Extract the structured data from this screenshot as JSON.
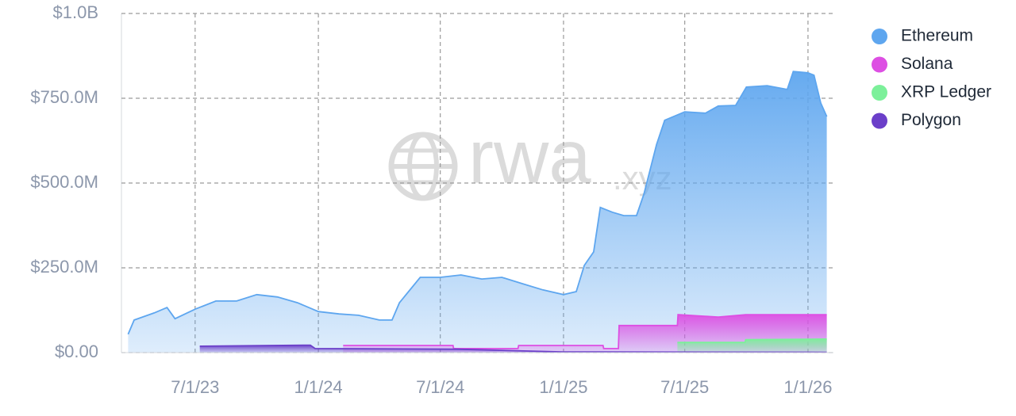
{
  "chart_data": {
    "type": "area",
    "watermark": {
      "main": "rwa",
      "suffix": ".xyz"
    },
    "xlim": [
      "2023-03-13",
      "2026-02-08"
    ],
    "xticks": [
      {
        "value": "2023-07-01",
        "label": "7/1/23"
      },
      {
        "value": "2024-01-01",
        "label": "1/1/24"
      },
      {
        "value": "2024-07-01",
        "label": "7/1/24"
      },
      {
        "value": "2025-01-01",
        "label": "1/1/25"
      },
      {
        "value": "2025-07-01",
        "label": "7/1/25"
      },
      {
        "value": "2026-01-01",
        "label": "1/1/26"
      }
    ],
    "ylim": [
      0,
      1000000000
    ],
    "yticks": [
      {
        "value": 0,
        "label": "$0.00"
      },
      {
        "value": 250000000,
        "label": "$250.0M"
      },
      {
        "value": 500000000,
        "label": "$500.0M"
      },
      {
        "value": 750000000,
        "label": "$750.0M"
      },
      {
        "value": 1000000000,
        "label": "$1.0B"
      }
    ],
    "grid": true,
    "legend": "right",
    "series": [
      {
        "name": "Ethereum",
        "color": "#5ea6ef",
        "x": [
          "2023-03-23",
          "2023-04-01",
          "2023-05-01",
          "2023-05-20",
          "2023-06-01",
          "2023-07-01",
          "2023-08-01",
          "2023-09-01",
          "2023-10-01",
          "2023-11-01",
          "2023-12-01",
          "2024-01-01",
          "2024-02-01",
          "2024-03-01",
          "2024-04-01",
          "2024-04-20",
          "2024-05-01",
          "2024-06-01",
          "2024-07-01",
          "2024-08-01",
          "2024-09-01",
          "2024-10-01",
          "2024-11-01",
          "2024-12-01",
          "2025-01-01",
          "2025-01-20",
          "2025-02-01",
          "2025-02-15",
          "2025-02-25",
          "2025-03-15",
          "2025-04-01",
          "2025-04-20",
          "2025-05-01",
          "2025-05-20",
          "2025-06-01",
          "2025-07-01",
          "2025-08-01",
          "2025-08-20",
          "2025-09-15",
          "2025-10-01",
          "2025-11-01",
          "2025-12-01",
          "2025-12-10",
          "2026-01-01",
          "2026-01-10",
          "2026-01-20",
          "2026-01-29"
        ],
        "values": [
          54000000,
          96000000,
          117000000,
          133000000,
          100000000,
          128000000,
          152000000,
          152000000,
          171000000,
          164000000,
          147000000,
          121000000,
          114000000,
          110000000,
          96000000,
          96000000,
          147000000,
          222000000,
          222000000,
          229000000,
          217000000,
          222000000,
          203000000,
          185000000,
          171000000,
          180000000,
          257000000,
          297000000,
          428000000,
          414000000,
          404000000,
          404000000,
          467000000,
          614000000,
          685000000,
          710000000,
          706000000,
          727000000,
          729000000,
          783000000,
          787000000,
          776000000,
          829000000,
          825000000,
          818000000,
          736000000,
          696000000
        ]
      },
      {
        "name": "Solana",
        "color": "#dd4fe3",
        "x": [
          "2024-02-07",
          "2024-07-20",
          "2024-07-21",
          "2024-10-25",
          "2024-10-26",
          "2025-03-01",
          "2025-03-02",
          "2025-03-24",
          "2025-03-25",
          "2025-06-20",
          "2025-06-21",
          "2025-08-20",
          "2025-09-30",
          "2026-01-29"
        ],
        "values": [
          21000000,
          21000000,
          12000000,
          12000000,
          21000000,
          21000000,
          12000000,
          12000000,
          80000000,
          80000000,
          112000000,
          105000000,
          112000000,
          112000000
        ]
      },
      {
        "name": "XRP Ledger",
        "color": "#7cf09a",
        "x": [
          "2025-06-20",
          "2025-09-29",
          "2025-09-30",
          "2026-01-29"
        ],
        "values": [
          30000000,
          30000000,
          38000000,
          40000000
        ]
      },
      {
        "name": "Polygon",
        "color": "#6b3fc9",
        "x": [
          "2023-07-08",
          "2023-12-20",
          "2023-12-27",
          "2024-07-25",
          "2024-12-31",
          "2026-01-29"
        ],
        "values": [
          19000000,
          22000000,
          12000000,
          10000000,
          2000000,
          1000000
        ]
      }
    ]
  }
}
